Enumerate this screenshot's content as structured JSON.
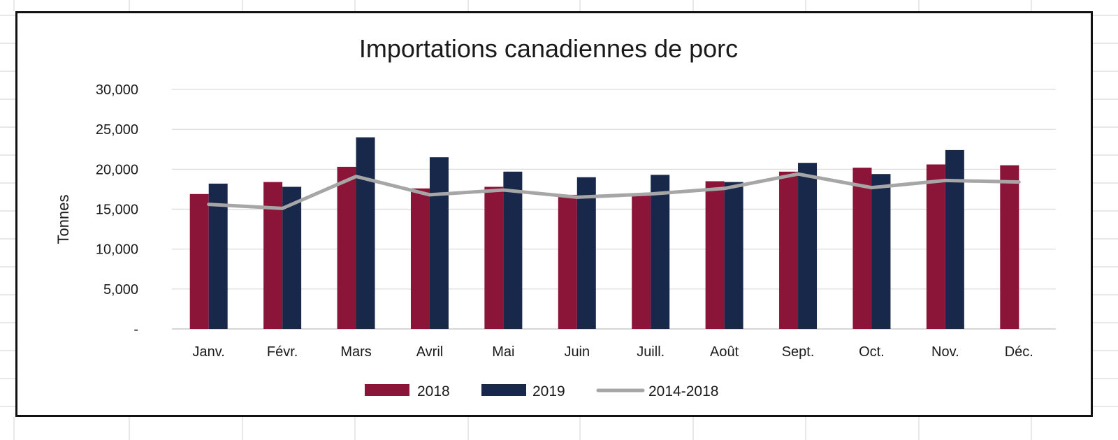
{
  "chart_data": {
    "type": "bar",
    "title": "Importations canadiennes de porc",
    "xlabel": "",
    "ylabel": "Tonnes",
    "ylim": [
      0,
      30000
    ],
    "y_ticks": [
      0,
      5000,
      10000,
      15000,
      20000,
      25000,
      30000
    ],
    "y_tick_labels": [
      "-",
      "5,000",
      "10,000",
      "15,000",
      "20,000",
      "25,000",
      "30,000"
    ],
    "grid": true,
    "legend_position": "bottom",
    "categories": [
      "Janv.",
      "Févr.",
      "Mars",
      "Avril",
      "Mai",
      "Juin",
      "Juill.",
      "Août",
      "Sept.",
      "Oct.",
      "Nov.",
      "Déc."
    ],
    "series": [
      {
        "name": "2018",
        "type": "bar",
        "color": "#8b1538",
        "values": [
          16900,
          18400,
          20300,
          17600,
          17800,
          16800,
          17000,
          18500,
          19700,
          20200,
          20600,
          20500
        ]
      },
      {
        "name": "2019",
        "type": "bar",
        "color": "#18284a",
        "values": [
          18200,
          17800,
          24000,
          21500,
          19700,
          19000,
          19300,
          18400,
          20800,
          19400,
          22400,
          null
        ]
      },
      {
        "name": "2014-2018",
        "type": "line",
        "color": "#a6a6a6",
        "values": [
          15600,
          15100,
          19100,
          16800,
          17400,
          16500,
          16900,
          17600,
          19400,
          17700,
          18600,
          18400
        ]
      }
    ]
  }
}
